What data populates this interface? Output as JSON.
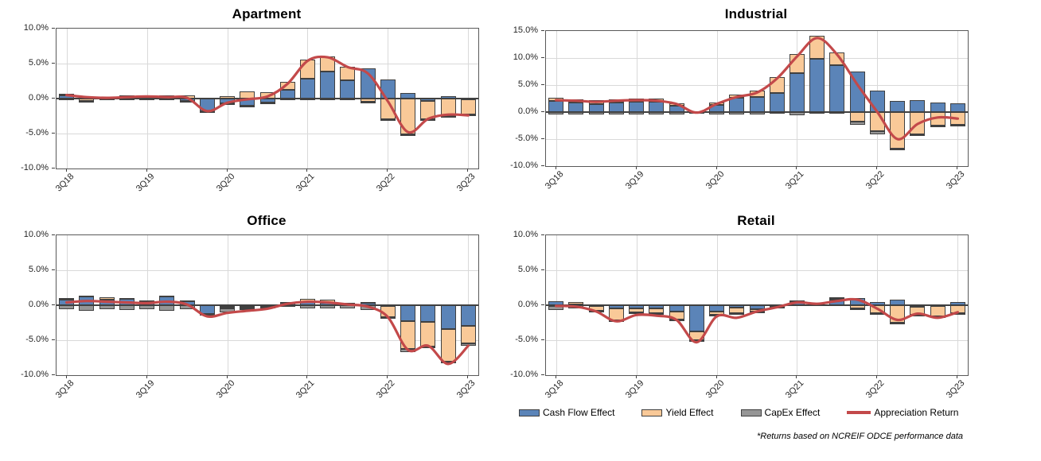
{
  "footnote": "*Returns based on NCREIF ODCE performance data",
  "colors": {
    "cash_flow": "#5B84B8",
    "yield": "#F9C998",
    "capex": "#969696",
    "line": "#C3494A",
    "grid": "#D9D9D9",
    "bar_border": "#404040"
  },
  "legend": {
    "items": [
      {
        "label": "Cash Flow Effect",
        "key": "cash_flow",
        "swatch": "bar"
      },
      {
        "label": "Yield Effect",
        "key": "yield",
        "swatch": "bar"
      },
      {
        "label": "CapEx Effect",
        "key": "capex",
        "swatch": "bar"
      },
      {
        "label": "Appreciation Return",
        "key": "line",
        "swatch": "line"
      }
    ]
  },
  "chart_data": [
    {
      "type": "bar",
      "stacked": true,
      "title": "Apartment",
      "categories": [
        "3Q18",
        "4Q18",
        "1Q19",
        "2Q19",
        "3Q19",
        "4Q19",
        "1Q20",
        "2Q20",
        "3Q20",
        "4Q20",
        "1Q21",
        "2Q21",
        "3Q21",
        "4Q21",
        "1Q22",
        "2Q22",
        "3Q22",
        "4Q22",
        "1Q23",
        "2Q23",
        "3Q23"
      ],
      "x_tick_labels": [
        "3Q18",
        "3Q19",
        "3Q20",
        "3Q21",
        "3Q22",
        "3Q23"
      ],
      "x_tick_indices": [
        0,
        4,
        8,
        12,
        16,
        20
      ],
      "y_tick_labels": [
        "10.0%",
        "5.0%",
        "0.0%",
        "-5.0%",
        "-10.0%"
      ],
      "y_ticks": [
        10,
        5,
        0,
        -5,
        -10
      ],
      "ylim": [
        -10,
        10
      ],
      "unit": "%",
      "grid": true,
      "series": [
        {
          "name": "Cash Flow Effect",
          "type": "bar",
          "color_key": "cash_flow",
          "values": [
            0.4,
            0.1,
            0.1,
            0.3,
            0.4,
            0.3,
            -0.3,
            -1.8,
            -0.7,
            -1.0,
            -0.6,
            1.2,
            2.8,
            3.9,
            2.6,
            4.3,
            2.7,
            0.8,
            -0.3,
            0.3,
            -0.1
          ]
        },
        {
          "name": "Yield Effect",
          "type": "bar",
          "color_key": "yield",
          "values": [
            0.3,
            -0.3,
            0.1,
            0.1,
            0.1,
            0.1,
            0.5,
            0.1,
            0.3,
            1.0,
            0.9,
            1.2,
            2.8,
            2.1,
            2.0,
            -0.5,
            -2.9,
            -5.1,
            -2.6,
            -2.5,
            -2.2
          ]
        },
        {
          "name": "CapEx Effect",
          "type": "bar",
          "color_key": "capex",
          "values": [
            -0.2,
            -0.1,
            -0.1,
            -0.1,
            -0.1,
            -0.1,
            -0.1,
            -0.2,
            -0.1,
            -0.1,
            -0.1,
            -0.1,
            -0.2,
            -0.2,
            -0.1,
            -0.2,
            -0.2,
            -0.2,
            -0.2,
            -0.1,
            -0.2
          ]
        },
        {
          "name": "Appreciation Return",
          "type": "line",
          "color_key": "line",
          "values": [
            0.5,
            0.2,
            0.1,
            0.2,
            0.3,
            0.2,
            0.1,
            -1.8,
            -0.6,
            -0.1,
            0.3,
            2.1,
            5.4,
            5.9,
            4.5,
            3.6,
            -0.4,
            -4.8,
            -2.9,
            -2.3,
            -2.4
          ]
        }
      ]
    },
    {
      "type": "bar",
      "stacked": true,
      "title": "Industrial",
      "categories": [
        "3Q18",
        "4Q18",
        "1Q19",
        "2Q19",
        "3Q19",
        "4Q19",
        "1Q20",
        "2Q20",
        "3Q20",
        "4Q20",
        "1Q21",
        "2Q21",
        "3Q21",
        "4Q21",
        "1Q22",
        "2Q22",
        "3Q22",
        "4Q22",
        "1Q23",
        "2Q23",
        "3Q23"
      ],
      "x_tick_labels": [
        "3Q18",
        "3Q19",
        "3Q20",
        "3Q21",
        "3Q22",
        "3Q23"
      ],
      "x_tick_indices": [
        0,
        4,
        8,
        12,
        16,
        20
      ],
      "y_tick_labels": [
        "15.0%",
        "10.0%",
        "5.0%",
        "0.0%",
        "-5.0%",
        "-10.0%"
      ],
      "y_ticks": [
        15,
        10,
        5,
        0,
        -5,
        -10
      ],
      "ylim": [
        -10,
        15
      ],
      "unit": "%",
      "grid": true,
      "series": [
        {
          "name": "Cash Flow Effect",
          "type": "bar",
          "color_key": "cash_flow",
          "values": [
            2.0,
            1.8,
            1.5,
            1.8,
            1.9,
            1.9,
            1.2,
            0.1,
            1.3,
            2.6,
            2.8,
            3.6,
            7.2,
            9.9,
            8.7,
            7.5,
            4.0,
            2.0,
            2.2,
            1.8,
            1.6
          ]
        },
        {
          "name": "Yield Effect",
          "type": "bar",
          "color_key": "yield",
          "values": [
            0.6,
            0.6,
            0.7,
            0.5,
            0.6,
            0.6,
            0.4,
            0.1,
            0.5,
            0.6,
            1.1,
            2.9,
            3.6,
            4.2,
            2.3,
            -1.8,
            -3.6,
            -6.7,
            -4.1,
            -2.5,
            -2.3
          ]
        },
        {
          "name": "CapEx Effect",
          "type": "bar",
          "color_key": "capex",
          "values": [
            -0.5,
            -0.4,
            -0.4,
            -0.4,
            -0.5,
            -0.5,
            -0.4,
            -0.2,
            -0.5,
            -0.5,
            -0.4,
            -0.3,
            -0.6,
            -0.3,
            -0.3,
            -0.6,
            -0.5,
            -0.3,
            -0.3,
            -0.3,
            -0.4
          ]
        },
        {
          "name": "Appreciation Return",
          "type": "line",
          "color_key": "line",
          "values": [
            2.2,
            2.1,
            1.9,
            2.1,
            2.2,
            2.1,
            1.5,
            -0.1,
            1.5,
            2.8,
            3.6,
            6.2,
            10.3,
            13.7,
            10.6,
            5.1,
            0.0,
            -5.0,
            -2.2,
            -1.0,
            -1.2
          ]
        }
      ]
    },
    {
      "type": "bar",
      "stacked": true,
      "title": "Office",
      "categories": [
        "3Q18",
        "4Q18",
        "1Q19",
        "2Q19",
        "3Q19",
        "4Q19",
        "1Q20",
        "2Q20",
        "3Q20",
        "4Q20",
        "1Q21",
        "2Q21",
        "3Q21",
        "4Q21",
        "1Q22",
        "2Q22",
        "3Q22",
        "4Q22",
        "1Q23",
        "2Q23",
        "3Q23"
      ],
      "x_tick_labels": [
        "3Q18",
        "3Q19",
        "3Q20",
        "3Q21",
        "3Q22",
        "3Q23"
      ],
      "x_tick_indices": [
        0,
        4,
        8,
        12,
        16,
        20
      ],
      "y_tick_labels": [
        "10.0%",
        "5.0%",
        "0.0%",
        "-5.0%",
        "-10.0%"
      ],
      "y_ticks": [
        10,
        5,
        0,
        -5,
        -10
      ],
      "ylim": [
        -10,
        10
      ],
      "unit": "%",
      "grid": true,
      "series": [
        {
          "name": "Cash Flow Effect",
          "type": "bar",
          "color_key": "cash_flow",
          "values": [
            0.8,
            1.2,
            0.8,
            0.9,
            0.6,
            1.3,
            0.6,
            -1.3,
            -0.2,
            -0.2,
            -0.1,
            0.3,
            0.4,
            0.3,
            0.2,
            0.4,
            -0.1,
            -2.3,
            -2.4,
            -3.4,
            -2.9
          ]
        },
        {
          "name": "Yield Effect",
          "type": "bar",
          "color_key": "yield",
          "values": [
            0.2,
            0.2,
            0.3,
            0.1,
            0.1,
            0.1,
            0.1,
            0.1,
            -0.3,
            -0.2,
            -0.1,
            0.1,
            0.5,
            0.5,
            0.1,
            0.1,
            -1.6,
            -4.0,
            -3.5,
            -4.7,
            -2.6
          ]
        },
        {
          "name": "CapEx Effect",
          "type": "bar",
          "color_key": "capex",
          "values": [
            -0.6,
            -0.8,
            -0.6,
            -0.7,
            -0.6,
            -0.8,
            -0.6,
            -0.2,
            -0.5,
            -0.3,
            -0.2,
            -0.2,
            -0.4,
            -0.5,
            -0.4,
            -0.7,
            -0.2,
            -0.4,
            -0.2,
            -0.2,
            -0.3
          ]
        },
        {
          "name": "Appreciation Return",
          "type": "line",
          "color_key": "line",
          "values": [
            0.4,
            0.6,
            0.5,
            0.4,
            0.3,
            0.5,
            0.1,
            -1.6,
            -1.1,
            -0.8,
            -0.5,
            0.2,
            0.5,
            0.4,
            0.1,
            -0.2,
            -1.7,
            -6.4,
            -5.8,
            -8.4,
            -5.8
          ]
        }
      ]
    },
    {
      "type": "bar",
      "stacked": true,
      "title": "Retail",
      "categories": [
        "3Q18",
        "4Q18",
        "1Q19",
        "2Q19",
        "3Q19",
        "4Q19",
        "1Q20",
        "2Q20",
        "3Q20",
        "4Q20",
        "1Q21",
        "2Q21",
        "3Q21",
        "4Q21",
        "1Q22",
        "2Q22",
        "3Q22",
        "4Q22",
        "1Q23",
        "2Q23",
        "3Q23"
      ],
      "x_tick_labels": [
        "3Q18",
        "3Q19",
        "3Q20",
        "3Q21",
        "3Q22",
        "3Q23"
      ],
      "x_tick_indices": [
        0,
        4,
        8,
        12,
        16,
        20
      ],
      "y_tick_labels": [
        "10.0%",
        "5.0%",
        "0.0%",
        "-5.0%",
        "-10.0%"
      ],
      "y_ticks": [
        10,
        5,
        0,
        -5,
        -10
      ],
      "ylim": [
        -10,
        10
      ],
      "unit": "%",
      "grid": true,
      "series": [
        {
          "name": "Cash Flow Effect",
          "type": "bar",
          "color_key": "cash_flow",
          "values": [
            0.6,
            0.1,
            -0.1,
            -0.5,
            -0.5,
            -0.4,
            -0.9,
            -3.8,
            -0.9,
            -0.3,
            -0.6,
            -0.1,
            0.3,
            0.1,
            0.8,
            1.0,
            0.5,
            0.8,
            -0.2,
            -0.1,
            0.5
          ]
        },
        {
          "name": "Yield Effect",
          "type": "bar",
          "color_key": "yield",
          "values": [
            -0.1,
            0.3,
            -0.7,
            -1.7,
            -0.5,
            -0.7,
            -1.2,
            -1.2,
            -0.5,
            -0.8,
            -0.3,
            -0.1,
            0.2,
            0.1,
            0.1,
            -0.4,
            -1.1,
            -2.5,
            -1.2,
            -1.5,
            -1.1
          ]
        },
        {
          "name": "CapEx Effect",
          "type": "bar",
          "color_key": "capex",
          "values": [
            -0.6,
            -0.4,
            -0.2,
            -0.2,
            -0.3,
            -0.2,
            -0.2,
            -0.2,
            -0.2,
            -0.3,
            -0.1,
            -0.1,
            0.2,
            0.1,
            0.2,
            -0.3,
            -0.2,
            -0.2,
            -0.2,
            -0.2,
            -0.2
          ]
        },
        {
          "name": "Appreciation Return",
          "type": "line",
          "color_key": "line",
          "values": [
            -0.1,
            -0.2,
            -0.9,
            -2.3,
            -1.4,
            -1.5,
            -2.1,
            -5.3,
            -1.6,
            -1.8,
            -0.9,
            -0.3,
            0.4,
            0.2,
            0.6,
            0.8,
            -0.5,
            -2.1,
            -1.2,
            -1.8,
            -1.0
          ]
        }
      ]
    }
  ]
}
